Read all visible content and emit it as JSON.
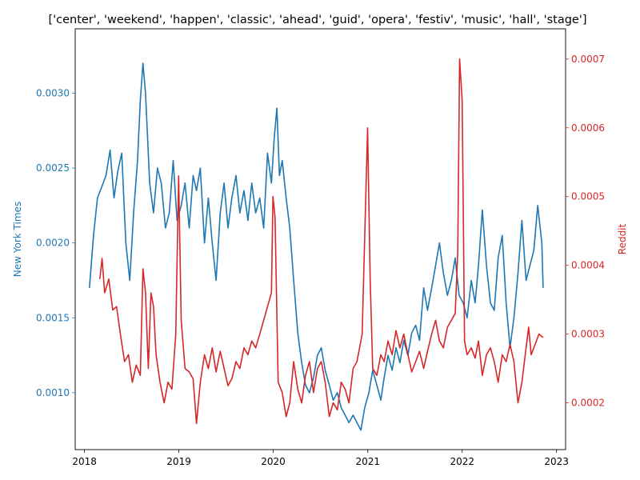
{
  "chart_data": {
    "type": "line",
    "title": "['center', 'weekend', 'happen', 'classic', 'ahead', 'guid', 'opera', 'festiv', 'music', 'hall', 'stage']",
    "xlabel": "",
    "x_ticks": [
      "2018",
      "2019",
      "2020",
      "2021",
      "2022",
      "2023"
    ],
    "x_range": [
      "2017-11-26",
      "2023-02-05"
    ],
    "grid": false,
    "legend": "none",
    "y_left": {
      "label": "New York Times",
      "color": "#1f77b4",
      "ticks": [
        "0.0010",
        "0.0015",
        "0.0020",
        "0.0025",
        "0.0030"
      ],
      "ylim": [
        0.00062,
        0.00343
      ]
    },
    "y_right": {
      "label": "Reddit",
      "color": "#d62728",
      "ticks": [
        "0.0002",
        "0.0003",
        "0.0004",
        "0.0005",
        "0.0006",
        "0.0007"
      ],
      "ylim": [
        0.000132,
        0.000744
      ]
    },
    "series": [
      {
        "name": "New York Times",
        "axis": "left",
        "color": "#1f77b4",
        "points": [
          [
            "2018-01-20",
            0.0017
          ],
          [
            "2018-02-05",
            0.00205
          ],
          [
            "2018-02-20",
            0.0023
          ],
          [
            "2018-03-10",
            0.00238
          ],
          [
            "2018-03-25",
            0.00245
          ],
          [
            "2018-04-10",
            0.00262
          ],
          [
            "2018-04-25",
            0.0023
          ],
          [
            "2018-05-10",
            0.00248
          ],
          [
            "2018-05-25",
            0.0026
          ],
          [
            "2018-06-10",
            0.002
          ],
          [
            "2018-06-25",
            0.00175
          ],
          [
            "2018-07-10",
            0.0022
          ],
          [
            "2018-07-25",
            0.00255
          ],
          [
            "2018-08-05",
            0.00295
          ],
          [
            "2018-08-15",
            0.0032
          ],
          [
            "2018-08-25",
            0.003
          ],
          [
            "2018-09-10",
            0.0024
          ],
          [
            "2018-09-25",
            0.0022
          ],
          [
            "2018-10-10",
            0.0025
          ],
          [
            "2018-10-25",
            0.0024
          ],
          [
            "2018-11-10",
            0.0021
          ],
          [
            "2018-11-25",
            0.0022
          ],
          [
            "2018-12-10",
            0.00255
          ],
          [
            "2018-12-25",
            0.00215
          ],
          [
            "2019-01-10",
            0.00225
          ],
          [
            "2019-01-25",
            0.0024
          ],
          [
            "2019-02-10",
            0.0021
          ],
          [
            "2019-02-25",
            0.00245
          ],
          [
            "2019-03-10",
            0.00235
          ],
          [
            "2019-03-25",
            0.0025
          ],
          [
            "2019-04-10",
            0.002
          ],
          [
            "2019-04-25",
            0.0023
          ],
          [
            "2019-05-10",
            0.002
          ],
          [
            "2019-05-25",
            0.00175
          ],
          [
            "2019-06-10",
            0.0022
          ],
          [
            "2019-06-25",
            0.0024
          ],
          [
            "2019-07-10",
            0.0021
          ],
          [
            "2019-07-25",
            0.0023
          ],
          [
            "2019-08-10",
            0.00245
          ],
          [
            "2019-08-25",
            0.0022
          ],
          [
            "2019-09-10",
            0.00235
          ],
          [
            "2019-09-25",
            0.00215
          ],
          [
            "2019-10-10",
            0.0024
          ],
          [
            "2019-10-25",
            0.0022
          ],
          [
            "2019-11-10",
            0.0023
          ],
          [
            "2019-11-25",
            0.0021
          ],
          [
            "2019-12-10",
            0.0026
          ],
          [
            "2019-12-25",
            0.0024
          ],
          [
            "2020-01-05",
            0.0027
          ],
          [
            "2020-01-15",
            0.0029
          ],
          [
            "2020-01-25",
            0.00245
          ],
          [
            "2020-02-05",
            0.00255
          ],
          [
            "2020-02-20",
            0.0023
          ],
          [
            "2020-03-05",
            0.0021
          ],
          [
            "2020-03-20",
            0.00175
          ],
          [
            "2020-04-05",
            0.0014
          ],
          [
            "2020-04-20",
            0.0012
          ],
          [
            "2020-05-05",
            0.00105
          ],
          [
            "2020-05-20",
            0.001
          ],
          [
            "2020-06-05",
            0.0011
          ],
          [
            "2020-06-20",
            0.00125
          ],
          [
            "2020-07-05",
            0.0013
          ],
          [
            "2020-07-20",
            0.00115
          ],
          [
            "2020-08-05",
            0.00105
          ],
          [
            "2020-08-20",
            0.00095
          ],
          [
            "2020-09-05",
            0.001
          ],
          [
            "2020-09-20",
            0.0009
          ],
          [
            "2020-10-05",
            0.00085
          ],
          [
            "2020-10-20",
            0.0008
          ],
          [
            "2020-11-05",
            0.00085
          ],
          [
            "2020-11-20",
            0.0008
          ],
          [
            "2020-12-05",
            0.00075
          ],
          [
            "2020-12-20",
            0.0009
          ],
          [
            "2021-01-05",
            0.001
          ],
          [
            "2021-01-20",
            0.00115
          ],
          [
            "2021-02-05",
            0.00105
          ],
          [
            "2021-02-20",
            0.00095
          ],
          [
            "2021-03-05",
            0.0011
          ],
          [
            "2021-03-20",
            0.00125
          ],
          [
            "2021-04-05",
            0.00115
          ],
          [
            "2021-04-20",
            0.0013
          ],
          [
            "2021-05-05",
            0.0012
          ],
          [
            "2021-05-20",
            0.00135
          ],
          [
            "2021-06-05",
            0.00125
          ],
          [
            "2021-06-20",
            0.0014
          ],
          [
            "2021-07-05",
            0.00145
          ],
          [
            "2021-07-20",
            0.00135
          ],
          [
            "2021-08-05",
            0.0017
          ],
          [
            "2021-08-20",
            0.00155
          ],
          [
            "2021-09-05",
            0.0017
          ],
          [
            "2021-09-20",
            0.00185
          ],
          [
            "2021-10-05",
            0.002
          ],
          [
            "2021-10-20",
            0.0018
          ],
          [
            "2021-11-05",
            0.00165
          ],
          [
            "2021-11-20",
            0.00175
          ],
          [
            "2021-12-05",
            0.0019
          ],
          [
            "2021-12-20",
            0.00165
          ],
          [
            "2022-01-05",
            0.0016
          ],
          [
            "2022-01-20",
            0.0015
          ],
          [
            "2022-02-05",
            0.00175
          ],
          [
            "2022-02-20",
            0.0016
          ],
          [
            "2022-03-05",
            0.00185
          ],
          [
            "2022-03-20",
            0.00222
          ],
          [
            "2022-04-05",
            0.00185
          ],
          [
            "2022-04-20",
            0.0016
          ],
          [
            "2022-05-05",
            0.00155
          ],
          [
            "2022-05-20",
            0.0019
          ],
          [
            "2022-06-05",
            0.00205
          ],
          [
            "2022-06-20",
            0.0016
          ],
          [
            "2022-07-05",
            0.0013
          ],
          [
            "2022-07-20",
            0.0015
          ],
          [
            "2022-08-05",
            0.0018
          ],
          [
            "2022-08-20",
            0.00215
          ],
          [
            "2022-09-05",
            0.00175
          ],
          [
            "2022-09-20",
            0.00185
          ],
          [
            "2022-10-05",
            0.00195
          ],
          [
            "2022-10-20",
            0.00225
          ],
          [
            "2022-11-05",
            0.002
          ],
          [
            "2022-11-10",
            0.0017
          ]
        ]
      },
      {
        "name": "Reddit",
        "axis": "right",
        "color": "#d62728",
        "points": [
          [
            "2018-03-01",
            0.00038
          ],
          [
            "2018-03-10",
            0.00041
          ],
          [
            "2018-03-20",
            0.00036
          ],
          [
            "2018-04-05",
            0.00038
          ],
          [
            "2018-04-20",
            0.000335
          ],
          [
            "2018-05-05",
            0.00034
          ],
          [
            "2018-05-20",
            0.0003
          ],
          [
            "2018-06-05",
            0.00026
          ],
          [
            "2018-06-20",
            0.00027
          ],
          [
            "2018-07-05",
            0.00023
          ],
          [
            "2018-07-20",
            0.000255
          ],
          [
            "2018-08-05",
            0.00024
          ],
          [
            "2018-08-15",
            0.000395
          ],
          [
            "2018-08-25",
            0.00036
          ],
          [
            "2018-09-05",
            0.00025
          ],
          [
            "2018-09-15",
            0.00036
          ],
          [
            "2018-09-25",
            0.00034
          ],
          [
            "2018-10-05",
            0.00027
          ],
          [
            "2018-10-20",
            0.00023
          ],
          [
            "2018-11-05",
            0.0002
          ],
          [
            "2018-11-20",
            0.00023
          ],
          [
            "2018-12-05",
            0.00022
          ],
          [
            "2018-12-20",
            0.0003
          ],
          [
            "2018-12-31",
            0.00053
          ],
          [
            "2019-01-10",
            0.00032
          ],
          [
            "2019-01-25",
            0.00025
          ],
          [
            "2019-02-10",
            0.000245
          ],
          [
            "2019-02-25",
            0.000235
          ],
          [
            "2019-03-10",
            0.00017
          ],
          [
            "2019-03-25",
            0.00023
          ],
          [
            "2019-04-10",
            0.00027
          ],
          [
            "2019-04-25",
            0.00025
          ],
          [
            "2019-05-10",
            0.00028
          ],
          [
            "2019-05-25",
            0.000245
          ],
          [
            "2019-06-10",
            0.000275
          ],
          [
            "2019-06-25",
            0.00025
          ],
          [
            "2019-07-10",
            0.000225
          ],
          [
            "2019-07-25",
            0.000235
          ],
          [
            "2019-08-10",
            0.00026
          ],
          [
            "2019-08-25",
            0.00025
          ],
          [
            "2019-09-10",
            0.00028
          ],
          [
            "2019-09-25",
            0.00027
          ],
          [
            "2019-10-10",
            0.00029
          ],
          [
            "2019-10-25",
            0.00028
          ],
          [
            "2019-11-10",
            0.0003
          ],
          [
            "2019-11-25",
            0.00032
          ],
          [
            "2019-12-10",
            0.00034
          ],
          [
            "2019-12-25",
            0.00036
          ],
          [
            "2019-12-31",
            0.0005
          ],
          [
            "2020-01-08",
            0.00047
          ],
          [
            "2020-01-20",
            0.00023
          ],
          [
            "2020-02-05",
            0.000215
          ],
          [
            "2020-02-20",
            0.00018
          ],
          [
            "2020-03-05",
            0.0002
          ],
          [
            "2020-03-20",
            0.00026
          ],
          [
            "2020-04-05",
            0.00022
          ],
          [
            "2020-04-20",
            0.0002
          ],
          [
            "2020-05-05",
            0.00024
          ],
          [
            "2020-05-20",
            0.00026
          ],
          [
            "2020-06-05",
            0.000215
          ],
          [
            "2020-06-20",
            0.00025
          ],
          [
            "2020-07-05",
            0.00026
          ],
          [
            "2020-07-20",
            0.00023
          ],
          [
            "2020-08-05",
            0.00018
          ],
          [
            "2020-08-20",
            0.0002
          ],
          [
            "2020-09-05",
            0.00019
          ],
          [
            "2020-09-20",
            0.00023
          ],
          [
            "2020-10-05",
            0.00022
          ],
          [
            "2020-10-20",
            0.0002
          ],
          [
            "2020-11-05",
            0.00025
          ],
          [
            "2020-11-20",
            0.00026
          ],
          [
            "2020-12-10",
            0.0003
          ],
          [
            "2020-12-31",
            0.0006
          ],
          [
            "2021-01-10",
            0.00038
          ],
          [
            "2021-01-20",
            0.00025
          ],
          [
            "2021-02-05",
            0.00024
          ],
          [
            "2021-02-20",
            0.00027
          ],
          [
            "2021-03-05",
            0.00026
          ],
          [
            "2021-03-20",
            0.00029
          ],
          [
            "2021-04-05",
            0.00027
          ],
          [
            "2021-04-20",
            0.000305
          ],
          [
            "2021-05-05",
            0.00028
          ],
          [
            "2021-05-20",
            0.0003
          ],
          [
            "2021-06-05",
            0.00027
          ],
          [
            "2021-06-20",
            0.000245
          ],
          [
            "2021-07-05",
            0.00026
          ],
          [
            "2021-07-20",
            0.000275
          ],
          [
            "2021-08-05",
            0.00025
          ],
          [
            "2021-08-20",
            0.000275
          ],
          [
            "2021-09-05",
            0.0003
          ],
          [
            "2021-09-20",
            0.00032
          ],
          [
            "2021-10-05",
            0.00029
          ],
          [
            "2021-10-20",
            0.00028
          ],
          [
            "2021-11-05",
            0.00031
          ],
          [
            "2021-11-20",
            0.00032
          ],
          [
            "2021-12-05",
            0.00033
          ],
          [
            "2021-12-15",
            0.00042
          ],
          [
            "2021-12-22",
            0.0007
          ],
          [
            "2022-01-01",
            0.00064
          ],
          [
            "2022-01-10",
            0.00029
          ],
          [
            "2022-01-20",
            0.00027
          ],
          [
            "2022-02-05",
            0.00028
          ],
          [
            "2022-02-20",
            0.000265
          ],
          [
            "2022-03-05",
            0.00029
          ],
          [
            "2022-03-20",
            0.00024
          ],
          [
            "2022-04-05",
            0.00027
          ],
          [
            "2022-04-20",
            0.00028
          ],
          [
            "2022-05-05",
            0.00026
          ],
          [
            "2022-05-20",
            0.00023
          ],
          [
            "2022-06-05",
            0.00027
          ],
          [
            "2022-06-20",
            0.00026
          ],
          [
            "2022-07-05",
            0.000285
          ],
          [
            "2022-07-20",
            0.00026
          ],
          [
            "2022-08-05",
            0.0002
          ],
          [
            "2022-08-20",
            0.00023
          ],
          [
            "2022-09-05",
            0.00028
          ],
          [
            "2022-09-15",
            0.00031
          ],
          [
            "2022-09-25",
            0.00027
          ],
          [
            "2022-10-10",
            0.000285
          ],
          [
            "2022-10-25",
            0.0003
          ],
          [
            "2022-11-10",
            0.000295
          ]
        ]
      }
    ]
  }
}
